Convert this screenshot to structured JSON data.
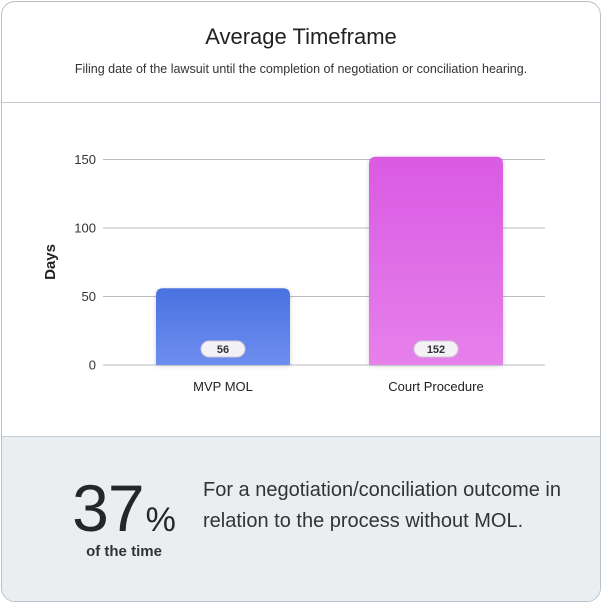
{
  "header": {
    "title": "Average Timeframe",
    "subtitle": "Filing date of the lawsuit until the completion of negotiation or conciliation hearing."
  },
  "chart_data": {
    "type": "bar",
    "categories": [
      "MVP MOL",
      "Court Procedure"
    ],
    "values": [
      56,
      152
    ],
    "ylabel": "Days",
    "yticks": [
      0,
      50,
      100,
      150
    ],
    "ylim": [
      0,
      160
    ],
    "grid": true,
    "colors": {
      "bar1_top": "#4a72e0",
      "bar1_bottom": "#6e8ef0",
      "bar2_top": "#d95ae3",
      "bar2_bottom": "#e680ea",
      "gridline": "#b8bec4"
    }
  },
  "footer": {
    "stat_number": "37",
    "stat_unit": "%",
    "stat_caption": "of the time",
    "description": "For a negotiation/conciliation outcome in relation to the process without MOL."
  }
}
